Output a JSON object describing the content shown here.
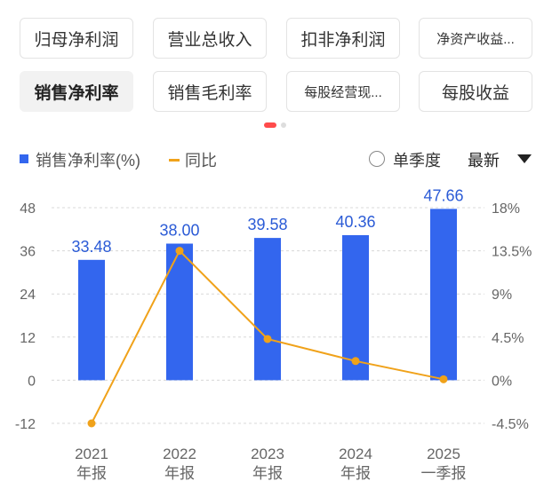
{
  "tabs_row1": [
    "归母净利润",
    "营业总收入",
    "扣非净利润",
    "净资产收益..."
  ],
  "tabs_row2": [
    "销售净利率",
    "销售毛利率",
    "每股经营现...",
    "每股收益"
  ],
  "active_tab": "销售净利率",
  "legend": {
    "bar": "销售净利率(%)",
    "line": "同比"
  },
  "controls": {
    "single_quarter": "单季度",
    "sort": "最新"
  },
  "colors": {
    "bar": "#3366ee",
    "line": "#f0a21a",
    "label": "#2b5bd6"
  },
  "chart_data": {
    "type": "bar",
    "categories": [
      [
        "2021",
        "年报"
      ],
      [
        "2022",
        "年报"
      ],
      [
        "2023",
        "年报"
      ],
      [
        "2024",
        "年报"
      ],
      [
        "2025",
        "一季报"
      ]
    ],
    "series": [
      {
        "name": "销售净利率(%)",
        "type": "bar",
        "axis": "left",
        "values": [
          33.48,
          38.0,
          39.58,
          40.36,
          47.66
        ]
      },
      {
        "name": "同比",
        "type": "line",
        "axis": "right",
        "values": [
          -4.5,
          13.5,
          4.3,
          2.0,
          0.1
        ]
      }
    ],
    "y_left": {
      "ticks": [
        "48",
        "36",
        "24",
        "12",
        "0",
        "-12"
      ],
      "range": [
        -12,
        48
      ]
    },
    "y_right": {
      "ticks": [
        "18%",
        "13.5%",
        "9%",
        "4.5%",
        "0%",
        "-4.5%"
      ],
      "range": [
        -4.5,
        18
      ]
    },
    "bar_labels": [
      "33.48",
      "38.00",
      "39.58",
      "40.36",
      "47.66"
    ]
  }
}
